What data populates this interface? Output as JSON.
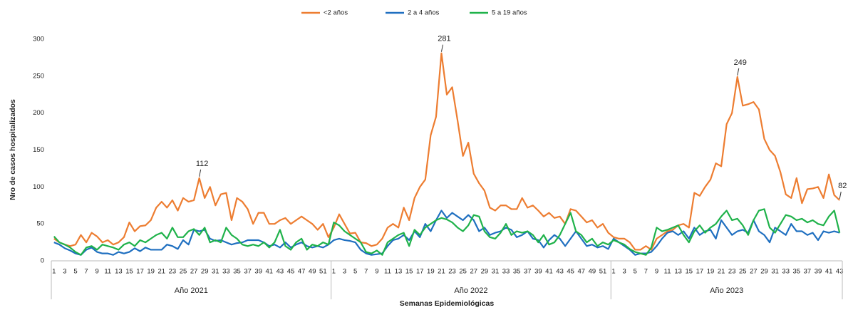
{
  "chart_data": {
    "type": "line",
    "legend": "top",
    "y_label": "Nro de casos hospitalizados",
    "x_label": "Semanas Epidemiológicas",
    "groups": [
      "Año 2021",
      "Año 2022",
      "Año 2023"
    ],
    "ylim": [
      0,
      300
    ],
    "yticks": [
      0,
      50,
      100,
      150,
      200,
      250,
      300
    ],
    "grid": false,
    "categories": [
      "1",
      null,
      "3",
      null,
      "5",
      null,
      "7",
      null,
      "9",
      null,
      "11",
      null,
      "13",
      null,
      "15",
      null,
      "17",
      null,
      "19",
      null,
      "21",
      null,
      "23",
      null,
      "25",
      null,
      "27",
      null,
      "29",
      null,
      "31",
      null,
      "33",
      null,
      "35",
      null,
      "37",
      null,
      "39",
      null,
      "41",
      null,
      "43",
      null,
      "45",
      null,
      "47",
      null,
      "49",
      null,
      "51",
      null,
      "1",
      null,
      "3",
      null,
      "5",
      null,
      "7",
      null,
      "9",
      null,
      "11",
      null,
      "13",
      null,
      "15",
      null,
      "17",
      null,
      "19",
      null,
      "21",
      null,
      "23",
      null,
      "25",
      null,
      "27",
      null,
      "29",
      null,
      "31",
      null,
      "33",
      null,
      "35",
      null,
      "37",
      null,
      "39",
      null,
      "41",
      null,
      "43",
      null,
      "45",
      null,
      "47",
      null,
      "49",
      null,
      "51",
      null,
      "1",
      null,
      "3",
      null,
      "5",
      null,
      "7",
      null,
      "9",
      null,
      "11",
      null,
      "13",
      null,
      "15",
      null,
      "17",
      null,
      "19",
      null,
      "21",
      null,
      "23",
      null,
      "25",
      null,
      "27",
      null,
      "29",
      null,
      "31",
      null,
      "33",
      null,
      "35",
      null,
      "37",
      null,
      "39",
      null,
      "41",
      null,
      "43"
    ],
    "series": [
      {
        "name": "<2  años",
        "color": "#ED7D31",
        "values": [
          30,
          25,
          22,
          20,
          22,
          35,
          25,
          38,
          33,
          25,
          28,
          22,
          25,
          32,
          52,
          40,
          47,
          48,
          55,
          72,
          80,
          72,
          82,
          68,
          85,
          80,
          82,
          112,
          85,
          100,
          75,
          90,
          92,
          55,
          85,
          80,
          70,
          50,
          65,
          65,
          50,
          50,
          55,
          58,
          50,
          55,
          60,
          55,
          50,
          42,
          50,
          32,
          45,
          63,
          50,
          37,
          38,
          25,
          24,
          20,
          22,
          30,
          45,
          50,
          45,
          72,
          55,
          85,
          100,
          110,
          170,
          195,
          281,
          225,
          235,
          190,
          142,
          160,
          118,
          105,
          95,
          72,
          68,
          75,
          75,
          70,
          70,
          85,
          72,
          75,
          68,
          60,
          65,
          58,
          60,
          50,
          70,
          68,
          60,
          52,
          55,
          45,
          50,
          38,
          32,
          30,
          30,
          25,
          15,
          15,
          20,
          15,
          30,
          35,
          40,
          42,
          48,
          50,
          45,
          92,
          88,
          100,
          110,
          132,
          128,
          185,
          200,
          249,
          210,
          212,
          215,
          205,
          165,
          150,
          142,
          120,
          90,
          85,
          112,
          78,
          97,
          98,
          100,
          85,
          117,
          89,
          82
        ],
        "value_labels": [
          null,
          null,
          null,
          null,
          null,
          null,
          null,
          null,
          null,
          null,
          null,
          null,
          null,
          null,
          null,
          null,
          null,
          null,
          null,
          null,
          null,
          null,
          null,
          null,
          null,
          null,
          null,
          "112",
          null,
          null,
          null,
          null,
          null,
          null,
          null,
          null,
          null,
          null,
          null,
          null,
          null,
          null,
          null,
          null,
          null,
          null,
          null,
          null,
          null,
          null,
          null,
          null,
          null,
          null,
          null,
          null,
          null,
          null,
          null,
          null,
          null,
          null,
          null,
          null,
          null,
          null,
          null,
          null,
          null,
          null,
          null,
          null,
          "281",
          null,
          null,
          null,
          null,
          null,
          null,
          null,
          null,
          null,
          null,
          null,
          null,
          null,
          null,
          null,
          null,
          null,
          null,
          null,
          null,
          null,
          null,
          null,
          null,
          null,
          null,
          null,
          null,
          null,
          null,
          null,
          null,
          null,
          null,
          null,
          null,
          null,
          null,
          null,
          null,
          null,
          null,
          null,
          null,
          null,
          null,
          null,
          null,
          null,
          null,
          null,
          null,
          null,
          null,
          "249",
          null,
          null,
          null,
          null,
          null,
          null,
          null,
          null,
          null,
          null,
          null,
          null,
          null,
          null,
          null,
          null,
          null,
          null,
          "82"
        ]
      },
      {
        "name": "2 a 4 años",
        "color": "#1F6FC0",
        "values": [
          25,
          22,
          17,
          14,
          10,
          8,
          15,
          18,
          12,
          10,
          10,
          8,
          12,
          10,
          12,
          17,
          13,
          18,
          15,
          15,
          15,
          22,
          20,
          16,
          28,
          22,
          42,
          40,
          42,
          30,
          27,
          28,
          25,
          22,
          24,
          25,
          28,
          28,
          28,
          25,
          20,
          22,
          18,
          25,
          18,
          22,
          25,
          20,
          18,
          20,
          18,
          22,
          28,
          30,
          28,
          27,
          25,
          15,
          10,
          8,
          9,
          10,
          20,
          28,
          30,
          35,
          28,
          40,
          32,
          50,
          40,
          55,
          68,
          58,
          65,
          60,
          55,
          62,
          55,
          40,
          45,
          35,
          38,
          40,
          45,
          42,
          32,
          35,
          40,
          30,
          28,
          18,
          28,
          35,
          30,
          20,
          30,
          40,
          30,
          20,
          22,
          18,
          20,
          16,
          30,
          25,
          20,
          15,
          8,
          10,
          10,
          12,
          20,
          30,
          38,
          40,
          35,
          40,
          30,
          45,
          35,
          40,
          42,
          30,
          55,
          45,
          35,
          40,
          42,
          38,
          55,
          40,
          35,
          25,
          45,
          40,
          35,
          50,
          40,
          40,
          35,
          38,
          28,
          40,
          38,
          40,
          38
        ]
      },
      {
        "name": "5 a 19 años",
        "color": "#1FB24A",
        "values": [
          33,
          25,
          22,
          18,
          12,
          8,
          18,
          20,
          15,
          22,
          20,
          18,
          15,
          22,
          25,
          20,
          28,
          25,
          30,
          35,
          38,
          30,
          45,
          32,
          32,
          40,
          43,
          35,
          45,
          25,
          28,
          25,
          45,
          35,
          30,
          22,
          20,
          22,
          20,
          25,
          18,
          25,
          42,
          20,
          15,
          25,
          30,
          15,
          22,
          20,
          25,
          22,
          52,
          48,
          40,
          35,
          30,
          25,
          12,
          10,
          14,
          8,
          25,
          30,
          35,
          38,
          20,
          42,
          35,
          45,
          50,
          55,
          58,
          56,
          52,
          45,
          40,
          48,
          62,
          60,
          40,
          32,
          30,
          38,
          50,
          35,
          40,
          38,
          40,
          35,
          25,
          35,
          22,
          25,
          35,
          50,
          65,
          40,
          35,
          25,
          30,
          20,
          25,
          22,
          28,
          25,
          22,
          16,
          12,
          10,
          8,
          18,
          45,
          40,
          42,
          45,
          48,
          35,
          25,
          40,
          48,
          38,
          45,
          50,
          60,
          68,
          55,
          57,
          48,
          35,
          55,
          68,
          70,
          45,
          38,
          50,
          62,
          60,
          55,
          57,
          52,
          55,
          50,
          48,
          60,
          68,
          38
        ]
      }
    ]
  }
}
